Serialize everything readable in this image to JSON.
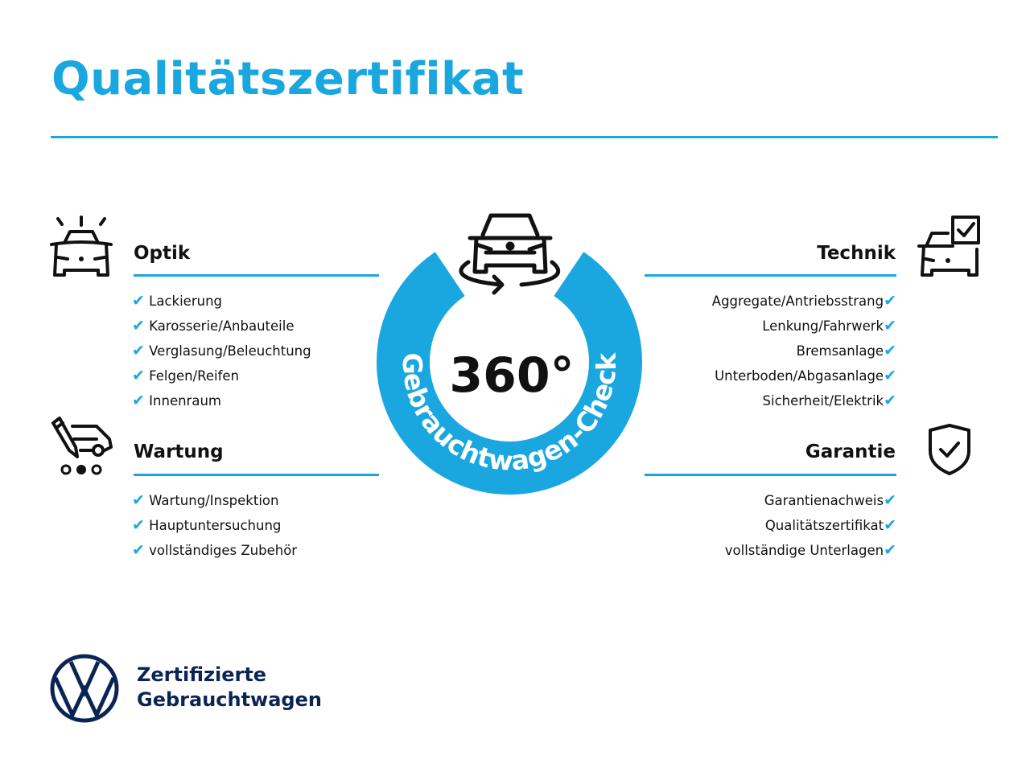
{
  "title": "Qualitätszertifikat",
  "colors": {
    "accent": "#1aa7e0",
    "brand": "#0a2454"
  },
  "center": {
    "number": "360°",
    "ring_text": "Gebrauchtwagen-Check",
    "icon": "car-rotate-icon"
  },
  "sections": {
    "optik": {
      "heading": "Optik",
      "icon": "car-lights-icon",
      "items": [
        "Lackierung",
        "Karosserie/Anbauteile",
        "Verglasung/Beleuchtung",
        "Felgen/Reifen",
        "Innenraum"
      ]
    },
    "technik": {
      "heading": "Technik",
      "icon": "car-checkbox-icon",
      "items": [
        "Aggregate/Antriebsstrang",
        "Lenkung/Fahrwerk",
        "Bremsanlage",
        "Unterboden/Abgasanlage",
        "Sicherheit/Elektrik"
      ]
    },
    "wartung": {
      "heading": "Wartung",
      "icon": "service-van-pencil-icon",
      "items": [
        "Wartung/Inspektion",
        "Hauptuntersuchung",
        "vollständiges Zubehör"
      ]
    },
    "garantie": {
      "heading": "Garantie",
      "icon": "shield-check-icon",
      "items": [
        "Garantienachweis",
        "Qualitätszertifikat",
        "vollständige Unterlagen"
      ]
    }
  },
  "check_mark": "✔",
  "footer": {
    "logo": "VW",
    "line1": "Zertifizierte",
    "line2": "Gebrauchtwagen"
  }
}
